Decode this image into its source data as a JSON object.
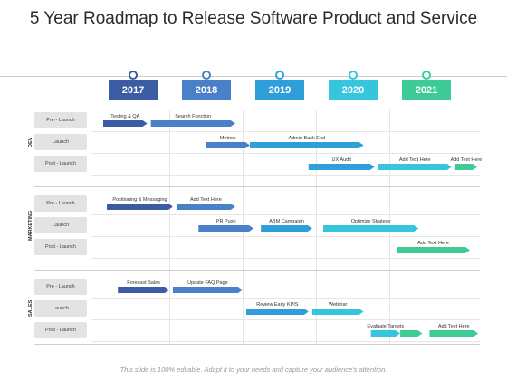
{
  "title": "5 Year Roadmap to Release Software Product and Service",
  "years": [
    {
      "label": "2017",
      "color": "#3b5ba5"
    },
    {
      "label": "2018",
      "color": "#4a80c8"
    },
    {
      "label": "2019",
      "color": "#2e9fd8"
    },
    {
      "label": "2020",
      "color": "#37c5de"
    },
    {
      "label": "2021",
      "color": "#3ecb95"
    }
  ],
  "groups": [
    {
      "label": "DEV",
      "rows": [
        "Pre - Launch",
        "Launch",
        "Post - Launch"
      ]
    },
    {
      "label": "MARKETING",
      "rows": [
        "Pre - Launch",
        "Launch",
        "Post - Launch"
      ]
    },
    {
      "label": "SALES",
      "rows": [
        "Pre - Launch",
        "Launch",
        "Post - Launch"
      ]
    }
  ],
  "tasks": [
    {
      "label": "Testing & QA",
      "group": 0,
      "row": 0,
      "start": 2017.0,
      "end": 2017.6,
      "color": "#3b5ba5"
    },
    {
      "label": "Search Function",
      "group": 0,
      "row": 0,
      "start": 2017.65,
      "end": 2018.8,
      "color": "#4a80c8"
    },
    {
      "label": "Metrics",
      "group": 0,
      "row": 1,
      "start": 2018.4,
      "end": 2019.0,
      "color": "#4a80c8"
    },
    {
      "label": "Admin Back End",
      "group": 0,
      "row": 1,
      "start": 2019.0,
      "end": 2020.55,
      "color": "#2e9fd8"
    },
    {
      "label": "UX Audit",
      "group": 0,
      "row": 2,
      "start": 2019.8,
      "end": 2020.7,
      "color": "#2e9fd8"
    },
    {
      "label": "Add Text Here",
      "group": 0,
      "row": 2,
      "start": 2020.75,
      "end": 2021.75,
      "color": "#37c5de"
    },
    {
      "label": "Add Text Here",
      "group": 0,
      "row": 2,
      "start": 2021.8,
      "end": 2022.1,
      "color": "#3ecb95"
    },
    {
      "label": "Positioning & Messaging",
      "group": 1,
      "row": 0,
      "start": 2017.05,
      "end": 2017.95,
      "color": "#3b5ba5"
    },
    {
      "label": "Add Text Here",
      "group": 1,
      "row": 0,
      "start": 2018.0,
      "end": 2018.8,
      "color": "#4a80c8"
    },
    {
      "label": "PR Push",
      "group": 1,
      "row": 1,
      "start": 2018.3,
      "end": 2019.05,
      "color": "#4a80c8"
    },
    {
      "label": "ABM Campaign",
      "group": 1,
      "row": 1,
      "start": 2019.15,
      "end": 2019.85,
      "color": "#2e9fd8"
    },
    {
      "label": "Optimize Strategy",
      "group": 1,
      "row": 1,
      "start": 2020.0,
      "end": 2021.3,
      "color": "#37c5de"
    },
    {
      "label": "Add Text Here",
      "group": 1,
      "row": 2,
      "start": 2021.0,
      "end": 2022.0,
      "color": "#3ecb95"
    },
    {
      "label": "Forecast Sales",
      "group": 2,
      "row": 0,
      "start": 2017.2,
      "end": 2017.9,
      "color": "#3b5ba5"
    },
    {
      "label": "Update FAQ Page",
      "group": 2,
      "row": 0,
      "start": 2017.95,
      "end": 2018.9,
      "color": "#4a80c8"
    },
    {
      "label": "Review Early KPIS",
      "group": 2,
      "row": 1,
      "start": 2018.95,
      "end": 2019.8,
      "color": "#2e9fd8"
    },
    {
      "label": "Webinar",
      "group": 2,
      "row": 1,
      "start": 2019.85,
      "end": 2020.55,
      "color": "#37c5de"
    },
    {
      "label": "Evaluate Targets",
      "group": 2,
      "row": 2,
      "start": 2020.65,
      "end": 2021.05,
      "color": "#37c5de"
    },
    {
      "label": "",
      "group": 2,
      "row": 2,
      "start": 2021.05,
      "end": 2021.35,
      "color": "#3ecb95"
    },
    {
      "label": "Add Text Here",
      "group": 2,
      "row": 2,
      "start": 2021.45,
      "end": 2022.2,
      "color": "#3ecb95"
    }
  ],
  "footer": "This slide is 100% editable. Adapt it to your needs and capture your audience's attention."
}
